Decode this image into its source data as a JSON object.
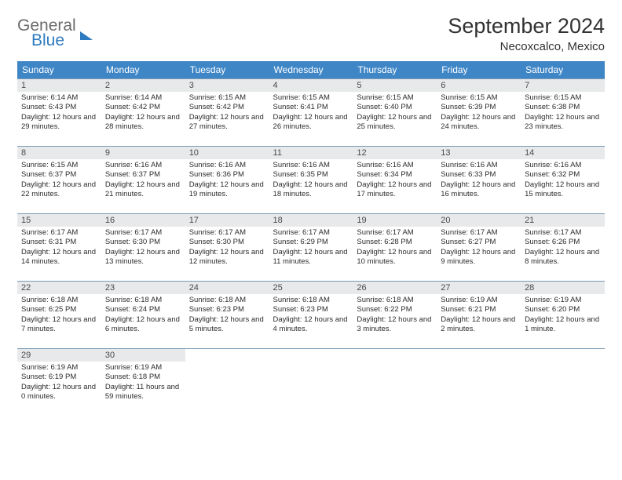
{
  "logo": {
    "word1": "General",
    "word2": "Blue"
  },
  "title": "September 2024",
  "location": "Necoxcalco, Mexico",
  "colors": {
    "header_bg": "#3f86c6",
    "header_text": "#ffffff",
    "daynum_bg": "#e7e9ea",
    "week_border": "#7a99b5",
    "logo_blue": "#2f7bbf",
    "logo_gray": "#6b6b6b"
  },
  "weekdays": [
    "Sunday",
    "Monday",
    "Tuesday",
    "Wednesday",
    "Thursday",
    "Friday",
    "Saturday"
  ],
  "days": [
    {
      "n": "1",
      "sr": "6:14 AM",
      "ss": "6:43 PM",
      "dl": "12 hours and 29 minutes."
    },
    {
      "n": "2",
      "sr": "6:14 AM",
      "ss": "6:42 PM",
      "dl": "12 hours and 28 minutes."
    },
    {
      "n": "3",
      "sr": "6:15 AM",
      "ss": "6:42 PM",
      "dl": "12 hours and 27 minutes."
    },
    {
      "n": "4",
      "sr": "6:15 AM",
      "ss": "6:41 PM",
      "dl": "12 hours and 26 minutes."
    },
    {
      "n": "5",
      "sr": "6:15 AM",
      "ss": "6:40 PM",
      "dl": "12 hours and 25 minutes."
    },
    {
      "n": "6",
      "sr": "6:15 AM",
      "ss": "6:39 PM",
      "dl": "12 hours and 24 minutes."
    },
    {
      "n": "7",
      "sr": "6:15 AM",
      "ss": "6:38 PM",
      "dl": "12 hours and 23 minutes."
    },
    {
      "n": "8",
      "sr": "6:15 AM",
      "ss": "6:37 PM",
      "dl": "12 hours and 22 minutes."
    },
    {
      "n": "9",
      "sr": "6:16 AM",
      "ss": "6:37 PM",
      "dl": "12 hours and 21 minutes."
    },
    {
      "n": "10",
      "sr": "6:16 AM",
      "ss": "6:36 PM",
      "dl": "12 hours and 19 minutes."
    },
    {
      "n": "11",
      "sr": "6:16 AM",
      "ss": "6:35 PM",
      "dl": "12 hours and 18 minutes."
    },
    {
      "n": "12",
      "sr": "6:16 AM",
      "ss": "6:34 PM",
      "dl": "12 hours and 17 minutes."
    },
    {
      "n": "13",
      "sr": "6:16 AM",
      "ss": "6:33 PM",
      "dl": "12 hours and 16 minutes."
    },
    {
      "n": "14",
      "sr": "6:16 AM",
      "ss": "6:32 PM",
      "dl": "12 hours and 15 minutes."
    },
    {
      "n": "15",
      "sr": "6:17 AM",
      "ss": "6:31 PM",
      "dl": "12 hours and 14 minutes."
    },
    {
      "n": "16",
      "sr": "6:17 AM",
      "ss": "6:30 PM",
      "dl": "12 hours and 13 minutes."
    },
    {
      "n": "17",
      "sr": "6:17 AM",
      "ss": "6:30 PM",
      "dl": "12 hours and 12 minutes."
    },
    {
      "n": "18",
      "sr": "6:17 AM",
      "ss": "6:29 PM",
      "dl": "12 hours and 11 minutes."
    },
    {
      "n": "19",
      "sr": "6:17 AM",
      "ss": "6:28 PM",
      "dl": "12 hours and 10 minutes."
    },
    {
      "n": "20",
      "sr": "6:17 AM",
      "ss": "6:27 PM",
      "dl": "12 hours and 9 minutes."
    },
    {
      "n": "21",
      "sr": "6:17 AM",
      "ss": "6:26 PM",
      "dl": "12 hours and 8 minutes."
    },
    {
      "n": "22",
      "sr": "6:18 AM",
      "ss": "6:25 PM",
      "dl": "12 hours and 7 minutes."
    },
    {
      "n": "23",
      "sr": "6:18 AM",
      "ss": "6:24 PM",
      "dl": "12 hours and 6 minutes."
    },
    {
      "n": "24",
      "sr": "6:18 AM",
      "ss": "6:23 PM",
      "dl": "12 hours and 5 minutes."
    },
    {
      "n": "25",
      "sr": "6:18 AM",
      "ss": "6:23 PM",
      "dl": "12 hours and 4 minutes."
    },
    {
      "n": "26",
      "sr": "6:18 AM",
      "ss": "6:22 PM",
      "dl": "12 hours and 3 minutes."
    },
    {
      "n": "27",
      "sr": "6:19 AM",
      "ss": "6:21 PM",
      "dl": "12 hours and 2 minutes."
    },
    {
      "n": "28",
      "sr": "6:19 AM",
      "ss": "6:20 PM",
      "dl": "12 hours and 1 minute."
    },
    {
      "n": "29",
      "sr": "6:19 AM",
      "ss": "6:19 PM",
      "dl": "12 hours and 0 minutes."
    },
    {
      "n": "30",
      "sr": "6:19 AM",
      "ss": "6:18 PM",
      "dl": "11 hours and 59 minutes."
    }
  ],
  "labels": {
    "sunrise": "Sunrise:",
    "sunset": "Sunset:",
    "daylight": "Daylight:"
  },
  "layout": {
    "start_weekday": 0,
    "total_cells": 35
  }
}
